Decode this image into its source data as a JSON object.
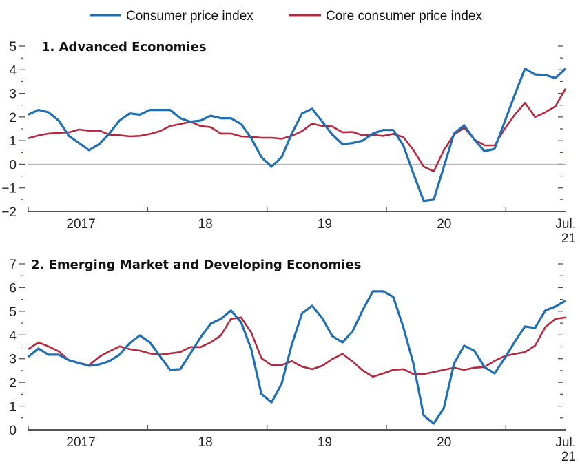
{
  "legend": {
    "items": [
      {
        "label": "Consumer price index",
        "color": "#1f6fb2"
      },
      {
        "label": "Core consumer price index",
        "color": "#b5293e"
      }
    ]
  },
  "chart_data": [
    {
      "type": "line",
      "title": "1. Advanced Economies",
      "xlabel": "",
      "ylabel": "",
      "x_range": [
        "Jan 2017",
        "Jul 2021"
      ],
      "x_frequency": "monthly",
      "x_tick_labels": [
        "2017",
        "18",
        "19",
        "20",
        "Jul.\n21"
      ],
      "x_tick_labels_lines": [
        [
          "2017"
        ],
        [
          "18"
        ],
        [
          "19"
        ],
        [
          "20"
        ],
        [
          "Jul.",
          "21"
        ]
      ],
      "ylim": [
        -2,
        5
      ],
      "yticks": [
        5,
        4,
        3,
        2,
        1,
        0,
        -1,
        -2
      ],
      "ytick_labels": [
        "5",
        "4",
        "3",
        "2",
        "1",
        "0",
        "−1",
        "−2"
      ],
      "zero_line": true,
      "grid": false,
      "series": [
        {
          "name": "Consumer price index",
          "color": "#1f6fb2",
          "values": [
            2.1,
            2.3,
            2.2,
            1.85,
            1.2,
            0.9,
            0.6,
            0.85,
            1.3,
            1.85,
            2.15,
            2.1,
            2.3,
            2.3,
            2.3,
            1.95,
            1.8,
            1.85,
            2.05,
            1.95,
            1.95,
            1.7,
            1.1,
            0.3,
            -0.1,
            0.3,
            1.3,
            2.15,
            2.35,
            1.8,
            1.25,
            0.85,
            0.9,
            1.0,
            1.3,
            1.45,
            1.45,
            0.8,
            -0.4,
            -1.55,
            -1.5,
            -0.1,
            1.3,
            1.65,
            1.05,
            0.55,
            0.65,
            1.8,
            2.95,
            4.05,
            3.8,
            3.78,
            3.65,
            4.05
          ]
        },
        {
          "name": "Core consumer price index",
          "color": "#b5293e",
          "values": [
            1.1,
            1.22,
            1.3,
            1.33,
            1.35,
            1.47,
            1.42,
            1.43,
            1.25,
            1.23,
            1.18,
            1.2,
            1.28,
            1.4,
            1.62,
            1.7,
            1.8,
            1.62,
            1.57,
            1.3,
            1.3,
            1.18,
            1.16,
            1.12,
            1.12,
            1.08,
            1.2,
            1.4,
            1.72,
            1.62,
            1.6,
            1.35,
            1.37,
            1.22,
            1.24,
            1.2,
            1.28,
            1.15,
            0.6,
            -0.1,
            -0.3,
            0.6,
            1.25,
            1.55,
            1.05,
            0.8,
            0.8,
            1.5,
            2.1,
            2.6,
            2.0,
            2.2,
            2.45,
            3.2
          ]
        }
      ]
    },
    {
      "type": "line",
      "title": "2. Emerging Market and Developing Economies",
      "xlabel": "",
      "ylabel": "",
      "x_range": [
        "Jan 2017",
        "Jul 2021"
      ],
      "x_frequency": "monthly",
      "x_tick_labels": [
        "2017",
        "18",
        "19",
        "20",
        "Jul.\n21"
      ],
      "x_tick_labels_lines": [
        [
          "2017"
        ],
        [
          "18"
        ],
        [
          "19"
        ],
        [
          "20"
        ],
        [
          "Jul.",
          "21"
        ]
      ],
      "ylim": [
        0,
        7
      ],
      "yticks": [
        7,
        6,
        5,
        4,
        3,
        2,
        1,
        0
      ],
      "ytick_labels": [
        "7",
        "6",
        "5",
        "4",
        "3",
        "2",
        "1",
        "0"
      ],
      "zero_line": false,
      "grid": false,
      "series": [
        {
          "name": "Consumer price index",
          "color": "#1f6fb2",
          "values": [
            3.08,
            3.43,
            3.17,
            3.17,
            2.94,
            2.82,
            2.7,
            2.76,
            2.9,
            3.17,
            3.66,
            3.98,
            3.69,
            3.11,
            2.53,
            2.56,
            3.22,
            3.9,
            4.48,
            4.68,
            5.03,
            4.53,
            3.4,
            1.51,
            1.16,
            1.95,
            3.6,
            4.91,
            5.23,
            4.71,
            3.95,
            3.69,
            4.16,
            5.06,
            5.84,
            5.84,
            5.61,
            4.33,
            2.79,
            0.61,
            0.26,
            0.93,
            2.79,
            3.55,
            3.34,
            2.65,
            2.38,
            3.02,
            3.72,
            4.36,
            4.3,
            5.03,
            5.2,
            5.44
          ]
        },
        {
          "name": "Core consumer price index",
          "color": "#b5293e",
          "values": [
            3.4,
            3.69,
            3.52,
            3.31,
            2.94,
            2.82,
            2.73,
            3.08,
            3.31,
            3.52,
            3.4,
            3.34,
            3.22,
            3.17,
            3.22,
            3.28,
            3.49,
            3.49,
            3.69,
            3.98,
            4.68,
            4.74,
            4.1,
            3.02,
            2.73,
            2.73,
            2.9,
            2.67,
            2.56,
            2.7,
            2.99,
            3.2,
            2.88,
            2.5,
            2.24,
            2.38,
            2.53,
            2.56,
            2.35,
            2.35,
            2.44,
            2.53,
            2.62,
            2.53,
            2.62,
            2.65,
            2.91,
            3.11,
            3.2,
            3.28,
            3.55,
            4.33,
            4.68,
            4.74
          ]
        }
      ]
    }
  ]
}
